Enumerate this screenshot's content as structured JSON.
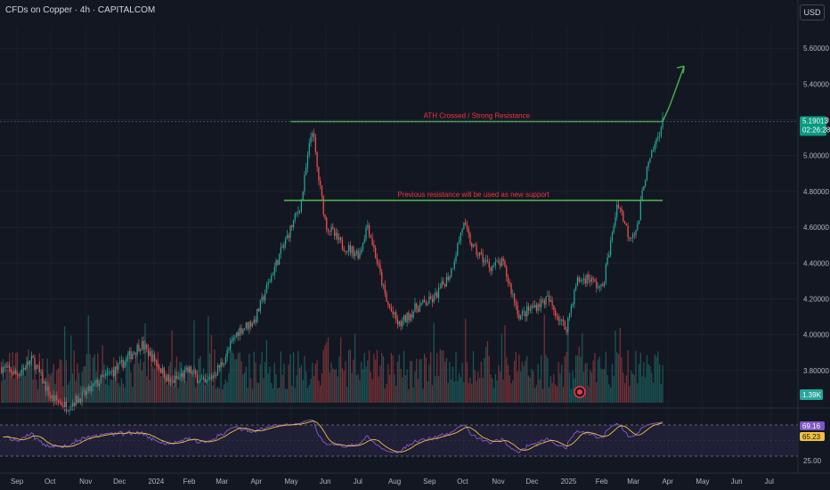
{
  "header": {
    "title": "CFDs on Copper · 4h · CAPITALCOM",
    "currency": "USD"
  },
  "colors": {
    "background": "#131722",
    "up": "#26a69a",
    "down": "#ef5350",
    "level_line": "#4caf50",
    "annotation_text": "#f23645",
    "rsi_line": "#7e57c2",
    "rsi_ma": "#f0c040",
    "rsi_band": "#2a2140"
  },
  "price_scale": {
    "ticks": [
      "5.60000",
      "5.40000",
      "5.20000",
      "5.00000",
      "4.80000",
      "4.60000",
      "4.40000",
      "4.20000",
      "4.00000",
      "3.80000"
    ],
    "last_price": "5.19013",
    "countdown": "02:26:28",
    "volume_tag": "1.39K"
  },
  "rsi_scale": {
    "upper": "75.00",
    "lower": "25.00",
    "value": "69.16",
    "ma_value": "65.23"
  },
  "time_axis": {
    "labels": [
      "Sep",
      "Oct",
      "Nov",
      "Dec",
      "2024",
      "Feb",
      "Mar",
      "Apr",
      "May",
      "Jun",
      "Jul",
      "Aug",
      "Sep",
      "Oct",
      "Nov",
      "Dec",
      "2025",
      "Feb",
      "Mar",
      "Apr",
      "May",
      "Jun",
      "Jul"
    ]
  },
  "annotations": {
    "ath": "ATH Crossed / Strong Resistance",
    "support": "Previous resistance will be used as new support"
  },
  "chart_data": {
    "type": "candlestick",
    "title": "CFDs on Copper · 4h · CAPITALCOM",
    "ylim": [
      3.62,
      5.72
    ],
    "x_range": [
      "2023-08-17",
      "2025-07-25"
    ],
    "levels": [
      {
        "label": "ATH Crossed / Strong Resistance",
        "price": 5.19,
        "from": "2024-05-01",
        "to": "2025-03-27"
      },
      {
        "label": "Previous resistance will be used as new support",
        "price": 4.75,
        "from": "2024-04-25",
        "to": "2025-03-27"
      }
    ],
    "projection": {
      "from_date": "2025-03-27",
      "from_price": 5.19,
      "to_date": "2025-04-15",
      "to_price": 5.5
    },
    "price_path": [
      [
        "2023-08-17",
        3.82
      ],
      [
        "2023-09-01",
        3.78
      ],
      [
        "2023-09-15",
        3.86
      ],
      [
        "2023-10-01",
        3.65
      ],
      [
        "2023-10-15",
        3.6
      ],
      [
        "2023-11-01",
        3.67
      ],
      [
        "2023-11-15",
        3.75
      ],
      [
        "2023-12-01",
        3.82
      ],
      [
        "2023-12-20",
        3.95
      ],
      [
        "2024-01-01",
        3.86
      ],
      [
        "2024-01-15",
        3.73
      ],
      [
        "2024-02-01",
        3.8
      ],
      [
        "2024-02-15",
        3.72
      ],
      [
        "2024-03-01",
        3.84
      ],
      [
        "2024-03-15",
        4.02
      ],
      [
        "2024-03-30",
        4.08
      ],
      [
        "2024-04-15",
        4.35
      ],
      [
        "2024-04-30",
        4.58
      ],
      [
        "2024-05-10",
        4.73
      ],
      [
        "2024-05-20",
        5.16
      ],
      [
        "2024-05-25",
        4.9
      ],
      [
        "2024-06-01",
        4.62
      ],
      [
        "2024-06-15",
        4.5
      ],
      [
        "2024-07-01",
        4.45
      ],
      [
        "2024-07-08",
        4.62
      ],
      [
        "2024-07-15",
        4.45
      ],
      [
        "2024-07-25",
        4.18
      ],
      [
        "2024-08-05",
        4.05
      ],
      [
        "2024-08-20",
        4.15
      ],
      [
        "2024-09-05",
        4.2
      ],
      [
        "2024-09-20",
        4.35
      ],
      [
        "2024-10-01",
        4.62
      ],
      [
        "2024-10-10",
        4.48
      ],
      [
        "2024-10-25",
        4.38
      ],
      [
        "2024-11-05",
        4.4
      ],
      [
        "2024-11-20",
        4.1
      ],
      [
        "2024-12-01",
        4.15
      ],
      [
        "2024-12-15",
        4.2
      ],
      [
        "2024-12-31",
        4.03
      ],
      [
        "2025-01-10",
        4.3
      ],
      [
        "2025-01-20",
        4.32
      ],
      [
        "2025-02-01",
        4.25
      ],
      [
        "2025-02-10",
        4.55
      ],
      [
        "2025-02-15",
        4.75
      ],
      [
        "2025-02-25",
        4.55
      ],
      [
        "2025-03-05",
        4.6
      ],
      [
        "2025-03-10",
        4.85
      ],
      [
        "2025-03-18",
        5.02
      ],
      [
        "2025-03-27",
        5.19
      ]
    ],
    "rsi": {
      "upper": 75,
      "lower": 25,
      "last": 69.16,
      "ma": 65.23
    }
  }
}
